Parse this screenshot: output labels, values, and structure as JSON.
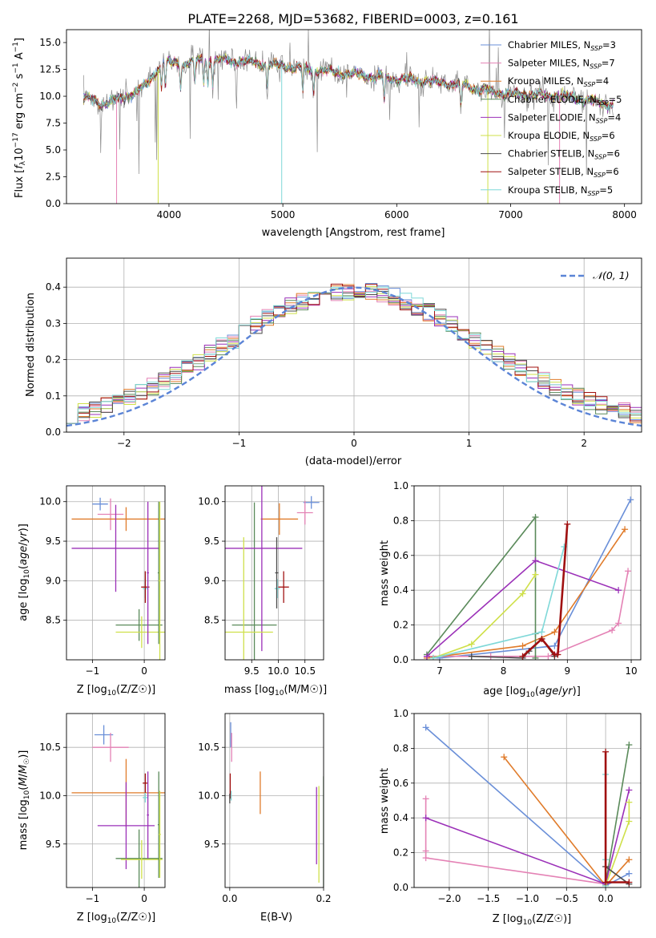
{
  "colors": {
    "Chabrier MILES": "#6a8fd8",
    "Salpeter MILES": "#e482b5",
    "Kroupa MILES": "#e07b2a",
    "Chabrier ELODIE": "#5a8a5a",
    "Salpeter ELODIE": "#9b30b8",
    "Kroupa ELODIE": "#cfe04a",
    "Chabrier STELIB": "#4a4a4a",
    "Salpeter STELIB": "#a01010",
    "Kroupa STELIB": "#7fd8d8",
    "gaussian": "#5b84d6",
    "grid": "#b0b0b0"
  },
  "chart_data": [
    {
      "id": "spectrum",
      "type": "line",
      "title": "PLATE=2268, MJD=53682, FIBERID=0003, z=0.161",
      "xlabel": "wavelength [Angstrom, rest frame]",
      "ylabel": "Flux [f_λ 10^-17 erg cm^-2 s^-1 A^-1]",
      "xlim": [
        3100,
        8150
      ],
      "ylim": [
        0,
        16.2
      ],
      "xticks": [
        "4000",
        "5000",
        "6000",
        "7000",
        "8000"
      ],
      "yticks": [
        "0.0",
        "2.5",
        "5.0",
        "7.5",
        "10.0",
        "12.5",
        "15.0"
      ],
      "grid": false,
      "legend_position": "top-right",
      "legend": [
        {
          "model": "Chabrier MILES",
          "label": "Chabrier MILES, N",
          "sub": "SSP",
          "tail": "=3"
        },
        {
          "model": "Salpeter MILES",
          "label": "Salpeter MILES, N",
          "sub": "SSP",
          "tail": "=7"
        },
        {
          "model": "Kroupa MILES",
          "label": "Kroupa MILES, N",
          "sub": "SSP",
          "tail": "=4"
        },
        {
          "model": "Chabrier ELODIE",
          "label": "Chabrier ELODIE, N",
          "sub": "SSP",
          "tail": "=5"
        },
        {
          "model": "Salpeter ELODIE",
          "label": "Salpeter ELODIE, N",
          "sub": "SSP",
          "tail": "=4"
        },
        {
          "model": "Kroupa ELODIE",
          "label": "Kroupa ELODIE, N",
          "sub": "SSP",
          "tail": "=6"
        },
        {
          "model": "Chabrier STELIB",
          "label": "Chabrier STELIB, N",
          "sub": "SSP",
          "tail": "=6"
        },
        {
          "model": "Salpeter STELIB",
          "label": "Salpeter STELIB, N",
          "sub": "SSP",
          "tail": "=6"
        },
        {
          "model": "Kroupa STELIB",
          "label": "Kroupa STELIB, N",
          "sub": "SSP",
          "tail": "=5"
        }
      ],
      "continuum": [
        [
          3250,
          10.0
        ],
        [
          3400,
          9.3
        ],
        [
          3600,
          9.8
        ],
        [
          3800,
          11.0
        ],
        [
          3950,
          13.2
        ],
        [
          4100,
          13.0
        ],
        [
          4300,
          13.4
        ],
        [
          4600,
          13.3
        ],
        [
          5000,
          12.8
        ],
        [
          5400,
          12.3
        ],
        [
          5800,
          11.8
        ],
        [
          6200,
          11.5
        ],
        [
          6600,
          11.0
        ],
        [
          6800,
          10.4
        ],
        [
          7000,
          10.2
        ],
        [
          7300,
          10.1
        ],
        [
          7600,
          9.8
        ],
        [
          7900,
          9.2
        ]
      ]
    },
    {
      "id": "residuals",
      "type": "line",
      "xlabel": "(data-model)/error",
      "ylabel": "Normed distribution",
      "xlim": [
        -2.5,
        2.5
      ],
      "ylim": [
        0,
        0.48
      ],
      "xticks": [
        "−2",
        "−1",
        "0",
        "1",
        "2"
      ],
      "yticks": [
        "0.0",
        "0.1",
        "0.2",
        "0.3",
        "0.4"
      ],
      "grid": true,
      "legend_position": "top-right",
      "gaussian_label": "𝒩(0, 1)",
      "bin_width": 0.1
    },
    {
      "id": "age-vs-Z",
      "type": "scatter",
      "xlabel_main": "Z [log",
      "xlabel_sub": "10",
      "xlabel_tail": "(Z/Z☉)]",
      "ylabel": "age  [log10(age/yr)]",
      "xlim": [
        -1.5,
        0.4
      ],
      "ylim": [
        8.0,
        10.2
      ],
      "xticks": [
        "−1",
        "0"
      ],
      "yticks": [
        "8.5",
        "9.0",
        "9.5",
        "10.0"
      ],
      "grid": true,
      "points": [
        {
          "model": "Chabrier MILES",
          "x": -0.85,
          "xerr": 0.15,
          "y": 9.97,
          "yerr": 0.08
        },
        {
          "model": "Salpeter MILES",
          "x": -0.65,
          "xerr": 0.25,
          "y": 9.84,
          "yerr": 0.2
        },
        {
          "model": "Kroupa MILES",
          "x": -0.35,
          "xerr": 1.05,
          "y": 9.78,
          "yerr": 0.15
        },
        {
          "model": "Chabrier ELODIE",
          "x": -0.1,
          "xerr": 0.45,
          "y": 8.44,
          "yerr": 0.2
        },
        {
          "model": "Salpeter ELODIE",
          "x": -0.55,
          "xerr": 0.85,
          "y": 9.41,
          "yerr": 0.55
        },
        {
          "model": "Kroupa ELODIE",
          "x": -0.05,
          "xerr": 0.5,
          "y": 8.35,
          "yerr": 0.2
        },
        {
          "model": "Kroupa STELIB",
          "x": 0.02,
          "xerr": 0.05,
          "y": 8.9,
          "yerr": 0.12
        },
        {
          "model": "Salpeter STELIB",
          "x": 0.02,
          "xerr": 0.08,
          "y": 8.92,
          "yerr": 0.2
        },
        {
          "model": "Chabrier ELODIE",
          "x": 0.28,
          "xerr": 0.02,
          "y": 9.1,
          "yerr": 0.9
        },
        {
          "model": "Kroupa ELODIE",
          "x": 0.3,
          "xerr": 0.02,
          "y": 9.0,
          "yerr": 1.0
        },
        {
          "model": "Salpeter ELODIE",
          "x": 0.07,
          "xerr": 0.02,
          "y": 9.1,
          "yerr": 0.9
        }
      ]
    },
    {
      "id": "age-vs-mass",
      "type": "scatter",
      "xlabel_main": "mass [log",
      "xlabel_sub": "10",
      "xlabel_tail": "(M/M☉)]",
      "xlim": [
        9.0,
        10.85
      ],
      "ylim": [
        8.0,
        10.2
      ],
      "xticks": [
        "9.5",
        "10.0",
        "10.5"
      ],
      "yticks": [
        "8.5",
        "9.0",
        "9.5",
        "10.0"
      ],
      "grid": true,
      "points": [
        {
          "model": "Chabrier MILES",
          "x": 10.62,
          "xerr": 0.15,
          "y": 9.99,
          "yerr": 0.08
        },
        {
          "model": "Salpeter MILES",
          "x": 10.5,
          "xerr": 0.15,
          "y": 9.86,
          "yerr": 0.15
        },
        {
          "model": "Kroupa MILES",
          "x": 10.02,
          "xerr": 0.35,
          "y": 9.78,
          "yerr": 0.2
        },
        {
          "model": "Chabrier ELODIE",
          "x": 9.55,
          "xerr": 0.42,
          "y": 8.44,
          "yerr": 1.55
        },
        {
          "model": "Salpeter ELODIE",
          "x": 9.69,
          "xerr": 0.76,
          "y": 9.41,
          "yerr": 1.3
        },
        {
          "model": "Kroupa ELODIE",
          "x": 9.35,
          "xerr": 0.55,
          "y": 8.35,
          "yerr": 1.2
        },
        {
          "model": "Kroupa STELIB",
          "x": 9.98,
          "xerr": 0.05,
          "y": 8.9,
          "yerr": 0.12
        },
        {
          "model": "Salpeter STELIB",
          "x": 10.1,
          "xerr": 0.1,
          "y": 8.92,
          "yerr": 0.2
        },
        {
          "model": "Chabrier STELIB",
          "x": 9.97,
          "xerr": 0.03,
          "y": 9.1,
          "yerr": 0.45
        }
      ]
    },
    {
      "id": "massweight-vs-age",
      "type": "line",
      "xlabel": "age  [log10(age/yr)]",
      "ylabel": "mass weight",
      "xlim": [
        6.6,
        10.15
      ],
      "ylim": [
        0,
        1.0
      ],
      "xticks": [
        "7",
        "8",
        "9",
        "10"
      ],
      "yticks": [
        "0.0",
        "0.2",
        "0.4",
        "0.6",
        "0.8",
        "1.0"
      ],
      "grid": true,
      "series": [
        {
          "model": "Chabrier MILES",
          "x": [
            7.0,
            8.8,
            9.99
          ],
          "y": [
            0.01,
            0.08,
            0.92
          ]
        },
        {
          "model": "Salpeter MILES",
          "x": [
            6.8,
            7.8,
            8.7,
            9.7,
            9.8,
            9.95
          ],
          "y": [
            0.02,
            0.02,
            0.02,
            0.17,
            0.21,
            0.51
          ]
        },
        {
          "model": "Kroupa MILES",
          "x": [
            6.8,
            8.3,
            8.8,
            9.9
          ],
          "y": [
            0.01,
            0.08,
            0.16,
            0.75
          ]
        },
        {
          "model": "Chabrier ELODIE",
          "x": [
            6.8,
            8.5,
            8.5,
            8.5
          ],
          "y": [
            0.03,
            0.82,
            0.15,
            0.01
          ]
        },
        {
          "model": "Salpeter ELODIE",
          "x": [
            6.8,
            8.5,
            9.8
          ],
          "y": [
            0.02,
            0.57,
            0.4
          ]
        },
        {
          "model": "Kroupa ELODIE",
          "x": [
            6.9,
            7.5,
            8.3,
            8.5
          ],
          "y": [
            0.01,
            0.09,
            0.38,
            0.49
          ]
        },
        {
          "model": "Chabrier STELIB",
          "x": [
            7.5,
            8.3,
            8.4,
            8.6,
            8.8
          ],
          "y": [
            0.02,
            0.01,
            0.05,
            0.12,
            0.02
          ]
        },
        {
          "model": "Kroupa STELIB",
          "x": [
            6.9,
            8.6,
            8.95
          ],
          "y": [
            0.01,
            0.16,
            0.65
          ]
        },
        {
          "model": "Salpeter STELIB",
          "x": [
            8.3,
            8.6,
            8.8,
            8.85,
            9.0
          ],
          "y": [
            0.02,
            0.12,
            0.03,
            0.03,
            0.78
          ]
        }
      ]
    },
    {
      "id": "mass-vs-Z",
      "type": "scatter",
      "xlabel_main": "Z [log",
      "xlabel_sub": "10",
      "xlabel_tail": "(Z/Z☉)]",
      "ylabel": "mass [log10(M/M☉)]",
      "xlim": [
        -1.5,
        0.4
      ],
      "ylim": [
        9.05,
        10.85
      ],
      "xticks": [
        "−1",
        "0"
      ],
      "yticks": [
        "9.5",
        "10.0",
        "10.5"
      ],
      "grid": true,
      "points": [
        {
          "model": "Chabrier MILES",
          "x": -0.78,
          "xerr": 0.18,
          "y": 10.63,
          "yerr": 0.1
        },
        {
          "model": "Salpeter MILES",
          "x": -0.65,
          "xerr": 0.35,
          "y": 10.5,
          "yerr": 0.15
        },
        {
          "model": "Kroupa MILES",
          "x": -0.35,
          "xerr": 1.05,
          "y": 10.03,
          "yerr": 0.35
        },
        {
          "model": "Chabrier ELODIE",
          "x": -0.1,
          "xerr": 0.45,
          "y": 9.35,
          "yerr": 0.3
        },
        {
          "model": "Salpeter ELODIE",
          "x": -0.35,
          "xerr": 0.55,
          "y": 9.69,
          "yerr": 0.45
        },
        {
          "model": "Kroupa ELODIE",
          "x": -0.05,
          "xerr": 0.4,
          "y": 9.34,
          "yerr": 0.2
        },
        {
          "model": "Kroupa STELIB",
          "x": 0.02,
          "xerr": 0.05,
          "y": 9.98,
          "yerr": 0.05
        },
        {
          "model": "Salpeter STELIB",
          "x": 0.02,
          "xerr": 0.05,
          "y": 10.13,
          "yerr": 0.1
        },
        {
          "model": "Chabrier ELODIE",
          "x": 0.28,
          "xerr": 0.02,
          "y": 9.7,
          "yerr": 0.55
        },
        {
          "model": "Kroupa ELODIE",
          "x": 0.3,
          "xerr": 0.02,
          "y": 9.6,
          "yerr": 0.45
        },
        {
          "model": "Salpeter ELODIE",
          "x": 0.07,
          "xerr": 0.02,
          "y": 9.8,
          "yerr": 0.45
        }
      ]
    },
    {
      "id": "mass-vs-EBV",
      "type": "scatter",
      "xlabel": "E(B-V)",
      "xlim": [
        -0.01,
        0.2
      ],
      "ylim": [
        9.05,
        10.85
      ],
      "xticks": [
        "0.0",
        "0.2"
      ],
      "yticks": [
        "9.5",
        "10.0",
        "10.5"
      ],
      "grid": true,
      "points": [
        {
          "model": "Chabrier MILES",
          "x": 0.002,
          "y": 10.63,
          "yerr": 0.13
        },
        {
          "model": "Salpeter MILES",
          "x": 0.004,
          "y": 10.5,
          "yerr": 0.15
        },
        {
          "model": "Kroupa MILES",
          "x": 0.065,
          "y": 10.03,
          "yerr": 0.22
        },
        {
          "model": "Chabrier ELODIE",
          "x": 0.2,
          "y": 9.6,
          "yerr": 0.6
        },
        {
          "model": "Salpeter ELODIE",
          "x": 0.185,
          "y": 9.69,
          "yerr": 0.4
        },
        {
          "model": "Kroupa ELODIE",
          "x": 0.19,
          "y": 9.6,
          "yerr": 0.5
        },
        {
          "model": "Kroupa STELIB",
          "x": 0.003,
          "y": 10.0,
          "yerr": 0.05
        },
        {
          "model": "Salpeter STELIB",
          "x": 0.001,
          "y": 10.1,
          "yerr": 0.13
        },
        {
          "model": "Chabrier STELIB",
          "x": 0.0,
          "y": 9.97,
          "yerr": 0.05
        }
      ]
    },
    {
      "id": "massweight-vs-Z",
      "type": "line",
      "xlabel_main": "Z [log",
      "xlabel_sub": "10",
      "xlabel_tail": "(Z/Z☉)]",
      "ylabel": "mass weight",
      "xlim": [
        -2.45,
        0.45
      ],
      "ylim": [
        0,
        1.0
      ],
      "xticks": [
        "−2.0",
        "−1.5",
        "−1.0",
        "−0.5",
        "0.0"
      ],
      "yticks": [
        "0.0",
        "0.2",
        "0.4",
        "0.6",
        "0.8",
        "1.0"
      ],
      "grid": true,
      "series": [
        {
          "model": "Chabrier MILES",
          "x": [
            -2.3,
            0.0,
            0.3
          ],
          "y": [
            0.92,
            0.01,
            0.08
          ]
        },
        {
          "model": "Salpeter MILES",
          "x": [
            -2.3,
            -2.3,
            -2.3,
            0.0,
            0.0
          ],
          "y": [
            0.51,
            0.21,
            0.17,
            0.02,
            0.02
          ]
        },
        {
          "model": "Kroupa MILES",
          "x": [
            -1.3,
            0.0,
            0.3
          ],
          "y": [
            0.75,
            0.01,
            0.16
          ]
        },
        {
          "model": "Chabrier ELODIE",
          "x": [
            0.0,
            0.3
          ],
          "y": [
            0.02,
            0.82
          ]
        },
        {
          "model": "Salpeter ELODIE",
          "x": [
            -2.3,
            0.0,
            0.3
          ],
          "y": [
            0.4,
            0.02,
            0.56
          ]
        },
        {
          "model": "Kroupa ELODIE",
          "x": [
            0.0,
            0.3,
            0.3
          ],
          "y": [
            0.01,
            0.38,
            0.49
          ]
        },
        {
          "model": "Chabrier STELIB",
          "x": [
            0.0,
            0.3
          ],
          "y": [
            0.12,
            0.02
          ]
        },
        {
          "model": "Kroupa STELIB",
          "x": [
            0.0,
            0.0,
            0.0
          ],
          "y": [
            0.65,
            0.16,
            0.01
          ]
        },
        {
          "model": "Salpeter STELIB",
          "x": [
            0.0,
            0.0,
            0.3
          ],
          "y": [
            0.78,
            0.03,
            0.03
          ]
        }
      ]
    }
  ]
}
